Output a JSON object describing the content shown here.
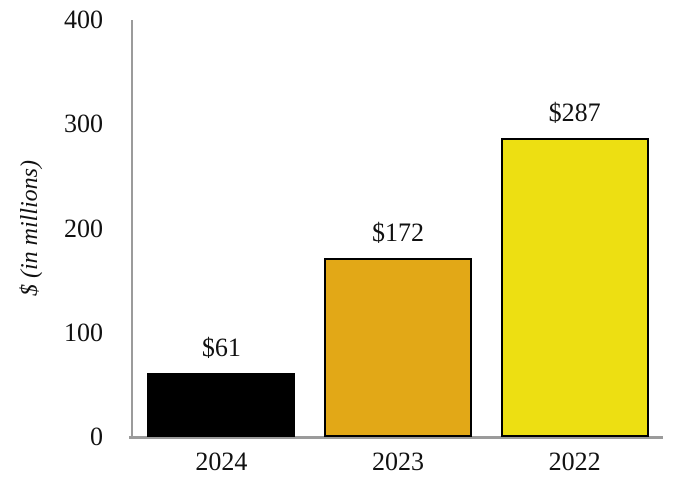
{
  "chart_data": {
    "type": "bar",
    "categories": [
      "2024",
      "2023",
      "2022"
    ],
    "values": [
      61,
      172,
      287
    ],
    "value_labels": [
      "$61",
      "$172",
      "$287"
    ],
    "series_name": "",
    "title": "",
    "xlabel": "",
    "ylabel": "$ (in millions)",
    "ylim": [
      0,
      400
    ],
    "yticks": [
      0,
      100,
      200,
      300,
      400
    ],
    "grid": false,
    "legend_position": "none",
    "bar_colors": [
      "#000000",
      "#e2a817",
      "#eddf12"
    ],
    "bar_border_color": "#000000",
    "axis_color": "#9b9b9b",
    "text_color": "#111111"
  }
}
